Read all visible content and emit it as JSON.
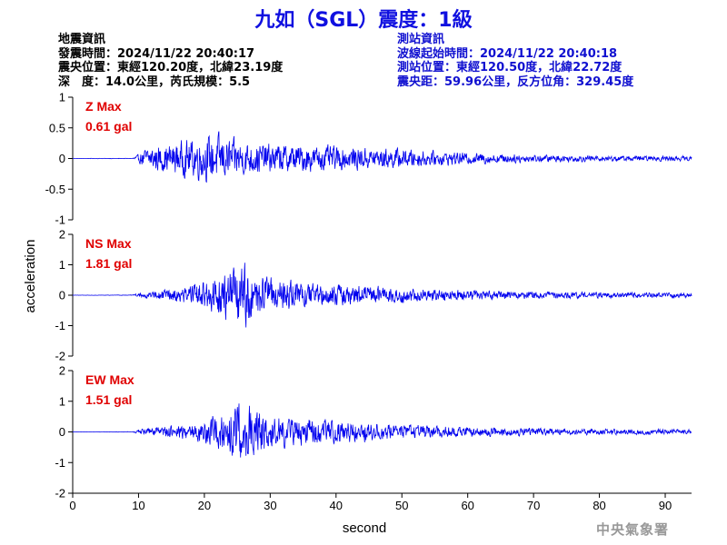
{
  "title": "九如（SGL）震度：1級",
  "earthquake_info": [
    "地震資訊",
    "發震時間：2024/11/22 20:40:17",
    "震央位置：東經120.20度，北緯23.19度",
    "深　度：14.0公里，芮氏規模：5.5"
  ],
  "station_info": [
    "測站資訊",
    "波線起始時間：2024/11/22 20:40:18",
    "測站位置：東經120.50度，北緯22.72度",
    "震央距：59.96公里，反方位角：329.45度"
  ],
  "credit": "中央氣象署",
  "colors": {
    "trace": "#0000ee",
    "title": "#1010e0",
    "max_label": "#e00000"
  },
  "chart_data": {
    "type": "line",
    "xlabel": "second",
    "ylabel": "acceleration",
    "xlim": [
      0,
      94
    ],
    "xticks": [
      0,
      10,
      20,
      30,
      40,
      50,
      60,
      70,
      80,
      90
    ],
    "panels": [
      {
        "component": "Z",
        "max_label": "Z Max",
        "max_value": "0.61 gal",
        "ylim": [
          -1,
          1
        ],
        "yticks": [
          -1,
          -0.5,
          0,
          0.5,
          1
        ],
        "ytick_labels": [
          "-1",
          "-0.5",
          "0",
          "0.5",
          "1"
        ],
        "envelope": [
          [
            0,
            0.003
          ],
          [
            9,
            0.005
          ],
          [
            10,
            0.08
          ],
          [
            11,
            0.2
          ],
          [
            12,
            0.25
          ],
          [
            15,
            0.3
          ],
          [
            18,
            0.4
          ],
          [
            20,
            0.45
          ],
          [
            22,
            0.5
          ],
          [
            24,
            0.4
          ],
          [
            26,
            0.35
          ],
          [
            30,
            0.3
          ],
          [
            35,
            0.28
          ],
          [
            40,
            0.25
          ],
          [
            45,
            0.22
          ],
          [
            50,
            0.2
          ],
          [
            55,
            0.15
          ],
          [
            60,
            0.12
          ],
          [
            70,
            0.08
          ],
          [
            80,
            0.06
          ],
          [
            94,
            0.05
          ]
        ]
      },
      {
        "component": "NS",
        "max_label": "NS Max",
        "max_value": "1.81 gal",
        "ylim": [
          -2,
          2
        ],
        "yticks": [
          -2,
          -1,
          0,
          1,
          2
        ],
        "ytick_labels": [
          "-2",
          "-1",
          "0",
          "1",
          "2"
        ],
        "envelope": [
          [
            0,
            0.005
          ],
          [
            9,
            0.01
          ],
          [
            10,
            0.1
          ],
          [
            12,
            0.15
          ],
          [
            15,
            0.25
          ],
          [
            18,
            0.4
          ],
          [
            20,
            0.6
          ],
          [
            22,
            0.8
          ],
          [
            24,
            1.1
          ],
          [
            26,
            1.3
          ],
          [
            28,
            0.9
          ],
          [
            30,
            0.7
          ],
          [
            35,
            0.5
          ],
          [
            40,
            0.45
          ],
          [
            45,
            0.4
          ],
          [
            50,
            0.3
          ],
          [
            55,
            0.25
          ],
          [
            60,
            0.2
          ],
          [
            70,
            0.15
          ],
          [
            80,
            0.12
          ],
          [
            94,
            0.1
          ]
        ]
      },
      {
        "component": "EW",
        "max_label": "EW Max",
        "max_value": "1.51 gal",
        "ylim": [
          -2,
          2
        ],
        "yticks": [
          -2,
          -1,
          0,
          1,
          2
        ],
        "ytick_labels": [
          "-2",
          "-1",
          "0",
          "1",
          "2"
        ],
        "envelope": [
          [
            0,
            0.005
          ],
          [
            9,
            0.01
          ],
          [
            10,
            0.1
          ],
          [
            12,
            0.2
          ],
          [
            15,
            0.25
          ],
          [
            18,
            0.35
          ],
          [
            20,
            0.5
          ],
          [
            22,
            0.7
          ],
          [
            24,
            1.1
          ],
          [
            26,
            1.2
          ],
          [
            28,
            0.9
          ],
          [
            30,
            0.7
          ],
          [
            35,
            0.55
          ],
          [
            40,
            0.5
          ],
          [
            45,
            0.4
          ],
          [
            50,
            0.3
          ],
          [
            55,
            0.25
          ],
          [
            60,
            0.2
          ],
          [
            70,
            0.15
          ],
          [
            80,
            0.12
          ],
          [
            94,
            0.1
          ]
        ]
      }
    ]
  }
}
